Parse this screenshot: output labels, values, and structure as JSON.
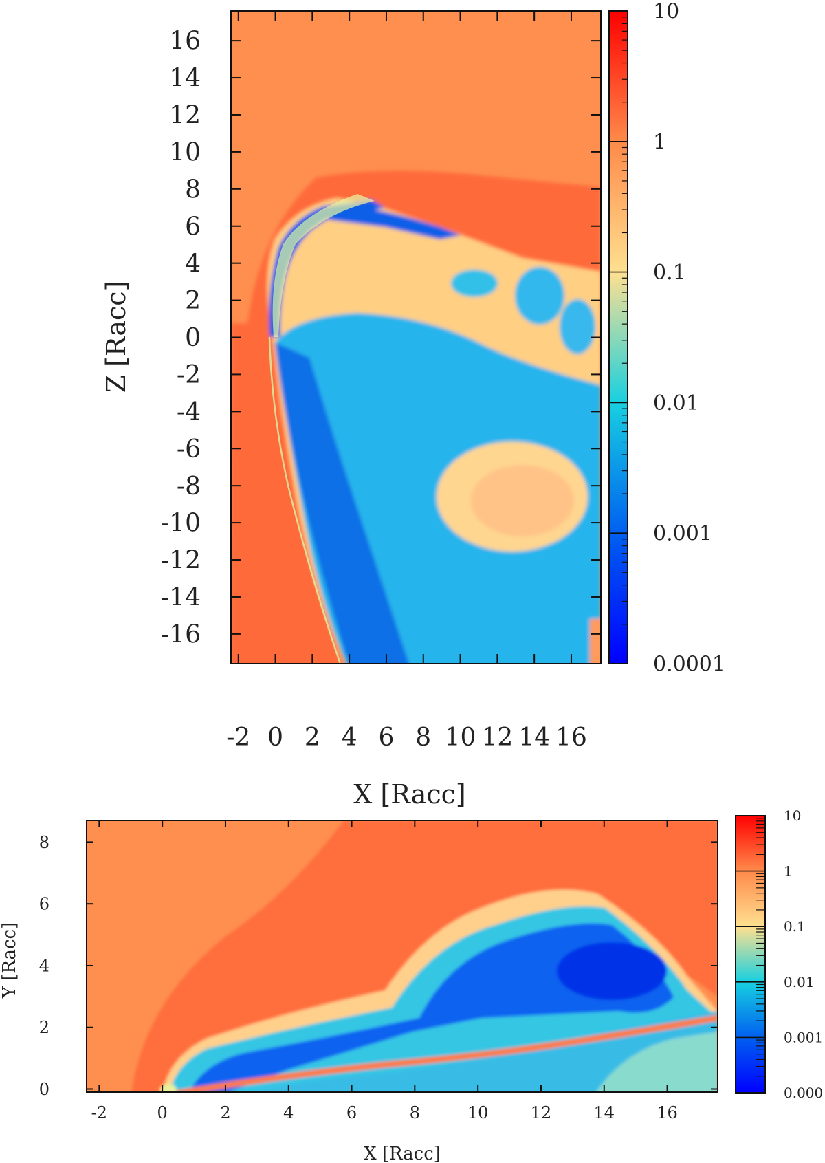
{
  "chart_data": [
    {
      "type": "heatmap",
      "title": "",
      "xlabel": "X [Racc]",
      "ylabel": "Z [Racc]",
      "xlim": [
        -2.4,
        17.6
      ],
      "ylim": [
        -17.6,
        17.6
      ],
      "xticks": [
        -2,
        0,
        2,
        4,
        6,
        8,
        10,
        12,
        14,
        16
      ],
      "yticks": [
        16,
        14,
        12,
        10,
        8,
        6,
        4,
        2,
        0,
        -2,
        -4,
        -6,
        -8,
        -10,
        -12,
        -14,
        -16
      ],
      "colorbar": {
        "scale": "log",
        "range": [
          0.0001,
          10
        ],
        "ticks": [
          {
            "value": 10,
            "label": "10"
          },
          {
            "value": 1,
            "label": "1"
          },
          {
            "value": 0.1,
            "label": "0.1"
          },
          {
            "value": 0.01,
            "label": "0.01"
          },
          {
            "value": 0.001,
            "label": "0.001"
          },
          {
            "value": 0.0001,
            "label": "0.0001"
          }
        ]
      },
      "colors": [
        "#0000ff",
        "#0070ee",
        "#18d0e0",
        "#ffe090",
        "#ff8f4f",
        "#ff0000"
      ]
    },
    {
      "type": "heatmap",
      "title": "",
      "xlabel": "X [Racc]",
      "ylabel": "Y [Racc]",
      "xlim": [
        -2.4,
        17.6
      ],
      "ylim": [
        -0.1,
        8.7
      ],
      "xticks": [
        -2,
        0,
        2,
        4,
        6,
        8,
        10,
        12,
        14,
        16
      ],
      "yticks": [
        0,
        2,
        4,
        6,
        8
      ],
      "colorbar": {
        "scale": "log",
        "range": [
          0.0001,
          10
        ],
        "ticks": [
          {
            "value": 10,
            "label": "10"
          },
          {
            "value": 1,
            "label": "1"
          },
          {
            "value": 0.1,
            "label": "0.1"
          },
          {
            "value": 0.01,
            "label": "0.01"
          },
          {
            "value": 0.001,
            "label": "0.001"
          },
          {
            "value": 0.0001,
            "label": "0.000"
          }
        ]
      },
      "colors": [
        "#0000ff",
        "#0070ee",
        "#18d0e0",
        "#ffe090",
        "#ff8f4f",
        "#ff0000"
      ]
    }
  ]
}
